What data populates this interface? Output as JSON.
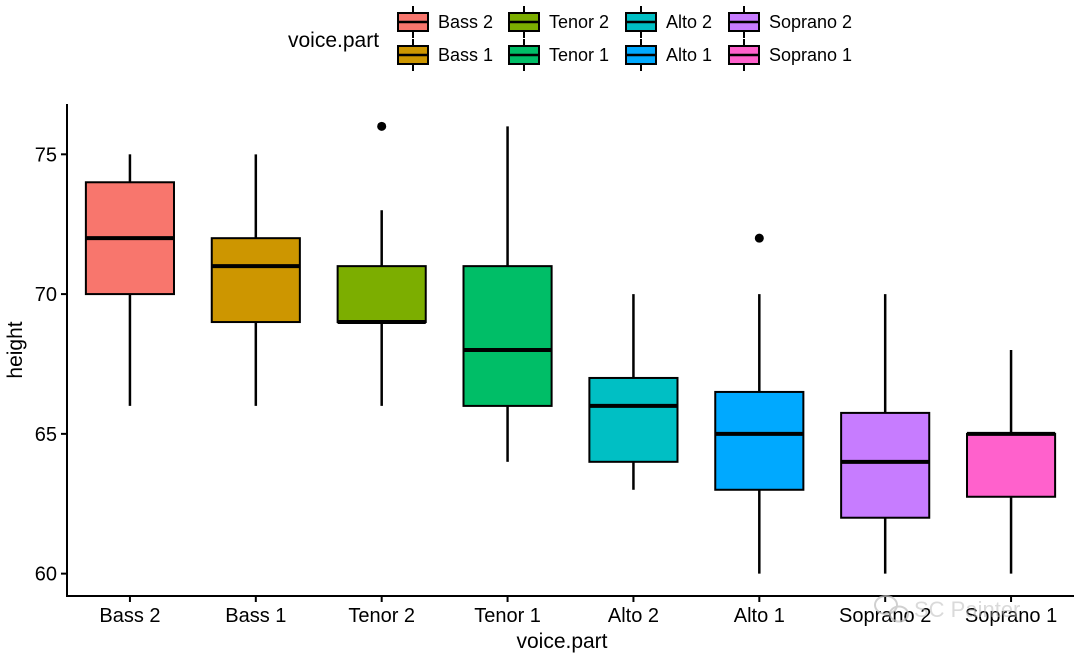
{
  "chart_data": {
    "type": "box",
    "title": "",
    "xlabel": "voice.part",
    "ylabel": "height",
    "ylim": [
      59.2,
      76.8
    ],
    "yticks": [
      60,
      65,
      70,
      75
    ],
    "grid": false,
    "legend": {
      "title": "voice.part",
      "placement": "top"
    },
    "categories": [
      "Bass 2",
      "Bass 1",
      "Tenor 2",
      "Tenor 1",
      "Alto 2",
      "Alto 1",
      "Soprano 2",
      "Soprano 1"
    ],
    "boxes": [
      {
        "name": "Bass 2",
        "color": "#F8766D",
        "whisker_low": 66,
        "q1": 70,
        "median": 72,
        "q3": 74,
        "whisker_high": 75,
        "outliers": []
      },
      {
        "name": "Bass 1",
        "color": "#CD9600",
        "whisker_low": 66,
        "q1": 69,
        "median": 71,
        "q3": 72,
        "whisker_high": 75,
        "outliers": []
      },
      {
        "name": "Tenor 2",
        "color": "#7CAE00",
        "whisker_low": 66,
        "q1": 69,
        "median": 69,
        "q3": 71,
        "whisker_high": 73,
        "outliers": [
          76
        ]
      },
      {
        "name": "Tenor 1",
        "color": "#00BE67",
        "whisker_low": 64,
        "q1": 66,
        "median": 68,
        "q3": 71,
        "whisker_high": 76,
        "outliers": []
      },
      {
        "name": "Alto 2",
        "color": "#00BFC4",
        "whisker_low": 63,
        "q1": 64,
        "median": 66,
        "q3": 67,
        "whisker_high": 70,
        "outliers": []
      },
      {
        "name": "Alto 1",
        "color": "#00A9FF",
        "whisker_low": 60,
        "q1": 63,
        "median": 65,
        "q3": 66.5,
        "whisker_high": 70,
        "outliers": [
          72
        ]
      },
      {
        "name": "Soprano 2",
        "color": "#C77CFF",
        "whisker_low": 60,
        "q1": 62,
        "median": 64,
        "q3": 65.75,
        "whisker_high": 70,
        "outliers": []
      },
      {
        "name": "Soprano 1",
        "color": "#FF61CC",
        "whisker_low": 60,
        "q1": 62.75,
        "median": 65,
        "q3": 65,
        "whisker_high": 68,
        "outliers": []
      }
    ]
  },
  "watermark": {
    "text": "SC Painter",
    "icon": "wechat-icon"
  }
}
